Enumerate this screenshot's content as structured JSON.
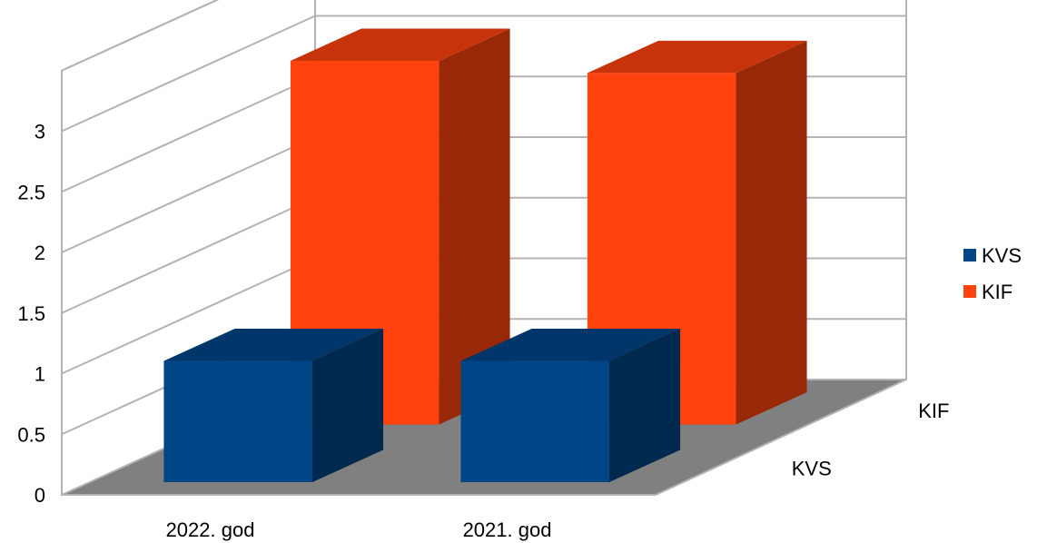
{
  "chart_data": {
    "type": "bar",
    "categories": [
      "2022. god",
      "2021. god"
    ],
    "depth_labels": [
      "KVS",
      "KIF"
    ],
    "series": [
      {
        "name": "KVS",
        "values": [
          1.0,
          1.0
        ],
        "color": "#004586"
      },
      {
        "name": "KIF",
        "values": [
          3.0,
          2.9
        ],
        "color": "#ff420e"
      }
    ],
    "y_ticks": [
      "0",
      "0.5",
      "1",
      "1.5",
      "2",
      "2.5",
      "3"
    ],
    "ylim": [
      0,
      3.5
    ],
    "grid": true,
    "legend_position": "right",
    "floor_color": "#808080",
    "three_d": true
  }
}
